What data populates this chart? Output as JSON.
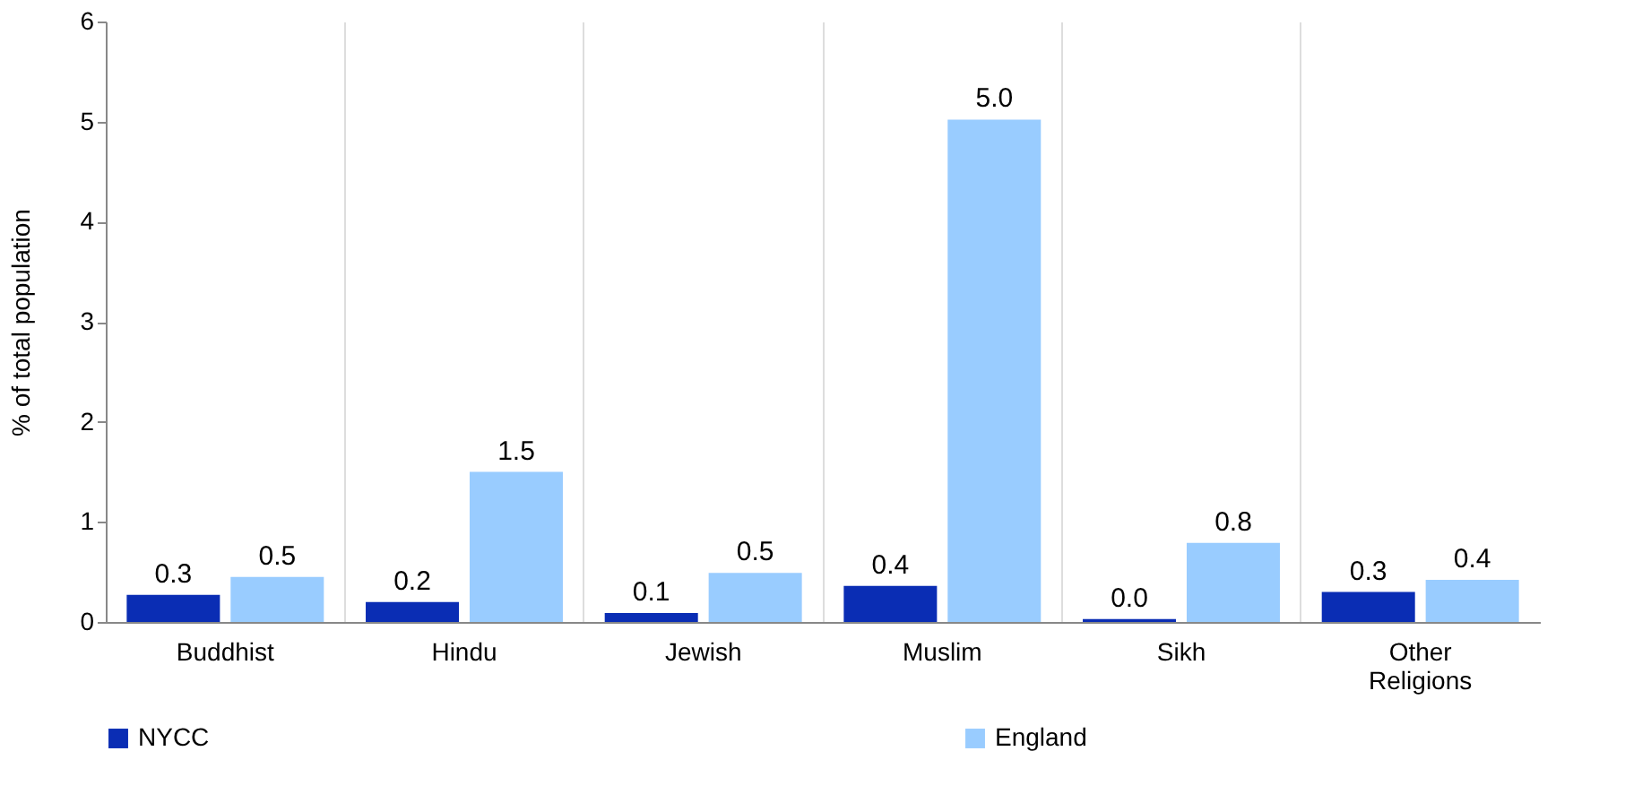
{
  "chart_data": {
    "type": "bar",
    "ylabel": "% of total population",
    "categories": [
      "Buddhist",
      "Hindu",
      "Jewish",
      "Muslim",
      "Sikh",
      "Other Religions"
    ],
    "series": [
      {
        "name": "NYCC",
        "color": "#0a2db4",
        "values": [
          0.27,
          0.2,
          0.09,
          0.36,
          0.03,
          0.3
        ],
        "value_labels": [
          "0.3",
          "0.2",
          "0.1",
          "0.4",
          "0.0",
          "0.3"
        ]
      },
      {
        "name": "England",
        "color": "#99ccff",
        "values": [
          0.45,
          1.5,
          0.49,
          5.02,
          0.79,
          0.42
        ],
        "value_labels": [
          "0.5",
          "1.5",
          "0.5",
          "5.0",
          "0.8",
          "0.4"
        ]
      }
    ],
    "ylim": [
      0,
      6
    ],
    "yticks": [
      0,
      1,
      2,
      3,
      4,
      5,
      6
    ],
    "grid": "x",
    "legend": "bottom"
  }
}
